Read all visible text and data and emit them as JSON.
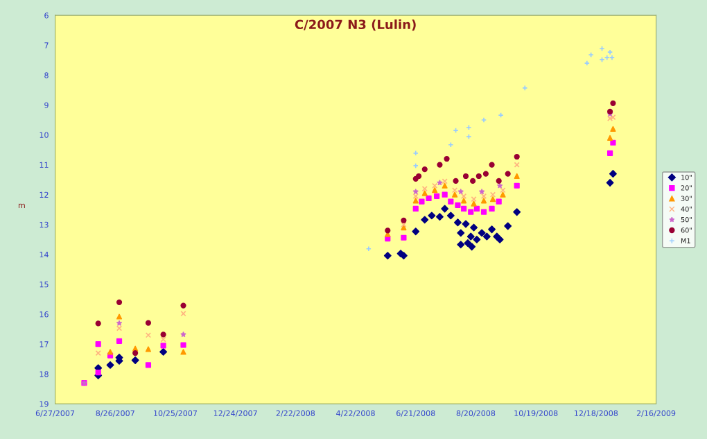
{
  "chart_data": {
    "type": "scatter",
    "title": "C/2007 N3 (Lulin)",
    "ylabel": "m",
    "xlim": [
      "2007-06-27",
      "2009-02-16"
    ],
    "xticks": [
      {
        "value": "2007-06-27",
        "label": "6/27/2007"
      },
      {
        "value": "2007-08-26",
        "label": "8/26/2007"
      },
      {
        "value": "2007-10-25",
        "label": "10/25/2007"
      },
      {
        "value": "2007-12-24",
        "label": "12/24/2007"
      },
      {
        "value": "2008-02-22",
        "label": "2/22/2008"
      },
      {
        "value": "2008-04-22",
        "label": "4/22/2008"
      },
      {
        "value": "2008-06-21",
        "label": "6/21/2008"
      },
      {
        "value": "2008-08-20",
        "label": "8/20/2008"
      },
      {
        "value": "2008-10-19",
        "label": "10/19/2008"
      },
      {
        "value": "2008-12-18",
        "label": "12/18/2008"
      },
      {
        "value": "2009-02-16",
        "label": "2/16/2009"
      }
    ],
    "ylim": [
      19,
      6
    ],
    "yticks": [
      6,
      7,
      8,
      9,
      10,
      11,
      12,
      13,
      14,
      15,
      16,
      17,
      18,
      19
    ],
    "grid": false,
    "legend": "right",
    "series": [
      {
        "name": "10\"",
        "color": "#000080",
        "marker": "diamond",
        "x": [
          "2007-08-09",
          "2007-08-09",
          "2007-08-21",
          "2007-08-30",
          "2007-08-30",
          "2007-09-15",
          "2007-10-13",
          "2008-05-24",
          "2008-06-06",
          "2008-06-09",
          "2008-06-21",
          "2008-06-30",
          "2008-07-07",
          "2008-07-15",
          "2008-07-20",
          "2008-07-26",
          "2008-08-02",
          "2008-08-05",
          "2008-08-10",
          "2008-08-15",
          "2008-08-18",
          "2008-08-21",
          "2008-08-26",
          "2008-08-31",
          "2008-09-05",
          "2008-09-10",
          "2008-09-13",
          "2008-09-21",
          "2008-09-30",
          "2008-08-05",
          "2008-08-16",
          "2008-08-12",
          "2009-01-01",
          "2009-01-04"
        ],
        "values": [
          17.8,
          18.05,
          17.7,
          17.45,
          17.56,
          17.54,
          17.26,
          14.04,
          13.97,
          14.04,
          13.23,
          12.84,
          12.7,
          12.74,
          12.47,
          12.7,
          12.93,
          13.28,
          12.98,
          13.4,
          13.1,
          13.5,
          13.28,
          13.4,
          13.16,
          13.4,
          13.5,
          13.05,
          12.58,
          13.67,
          13.74,
          13.62,
          11.6,
          11.3
        ]
      },
      {
        "name": "20\"",
        "color": "#ff00ff",
        "marker": "square",
        "x": [
          "2007-07-26",
          "2007-08-09",
          "2007-08-09",
          "2007-08-21",
          "2007-08-30",
          "2007-09-28",
          "2007-10-13",
          "2007-11-02",
          "2008-05-24",
          "2008-06-09",
          "2008-06-21",
          "2008-06-27",
          "2008-07-04",
          "2008-07-12",
          "2008-07-20",
          "2008-07-26",
          "2008-08-02",
          "2008-08-08",
          "2008-08-15",
          "2008-08-21",
          "2008-08-28",
          "2008-09-05",
          "2008-09-12",
          "2008-09-30",
          "2009-01-01",
          "2009-01-04"
        ],
        "values": [
          18.3,
          17.0,
          17.95,
          17.38,
          16.9,
          17.7,
          17.05,
          17.03,
          13.47,
          13.44,
          12.47,
          12.23,
          12.12,
          12.05,
          12.0,
          12.23,
          12.35,
          12.47,
          12.58,
          12.47,
          12.58,
          12.47,
          12.23,
          11.7,
          10.61,
          10.26
        ]
      },
      {
        "name": "30\"",
        "color": "#ff9900",
        "marker": "triangle",
        "x": [
          "2007-08-21",
          "2007-08-30",
          "2007-09-15",
          "2007-09-28",
          "2007-11-02",
          "2008-05-24",
          "2008-06-09",
          "2008-06-21",
          "2008-06-30",
          "2008-07-10",
          "2008-07-20",
          "2008-07-30",
          "2008-08-08",
          "2008-08-18",
          "2008-08-28",
          "2008-09-06",
          "2008-09-16",
          "2008-09-30",
          "2009-01-01",
          "2009-01-04"
        ],
        "values": [
          17.26,
          16.08,
          17.15,
          17.17,
          17.26,
          13.32,
          13.1,
          12.2,
          11.95,
          11.85,
          11.7,
          12.0,
          12.2,
          12.3,
          12.2,
          12.15,
          12.0,
          11.38,
          10.1,
          9.8
        ]
      },
      {
        "name": "40\"",
        "color": "#ffb380",
        "marker": "cross",
        "x": [
          "2007-08-09",
          "2007-08-30",
          "2007-09-28",
          "2007-10-13",
          "2007-11-02",
          "2008-05-24",
          "2008-06-09",
          "2008-06-21",
          "2008-06-30",
          "2008-07-10",
          "2008-07-20",
          "2008-07-30",
          "2008-08-08",
          "2008-08-18",
          "2008-08-28",
          "2008-09-06",
          "2008-09-16",
          "2008-09-30",
          "2009-01-01",
          "2009-01-04"
        ],
        "values": [
          17.3,
          16.47,
          16.7,
          16.84,
          15.98,
          null,
          13.0,
          12.05,
          11.8,
          11.7,
          11.55,
          11.85,
          12.05,
          12.15,
          12.05,
          12.0,
          11.85,
          11.0,
          9.45,
          9.41
        ]
      },
      {
        "name": "50\"",
        "color": "#cc66cc",
        "marker": "star",
        "x": [
          "2007-07-26",
          "2007-08-30",
          "2007-11-02",
          "2008-06-21",
          "2008-07-15",
          "2008-08-05",
          "2008-08-26",
          "2008-09-13",
          "2009-01-01"
        ],
        "values": [
          18.3,
          16.3,
          16.68,
          11.9,
          11.6,
          11.9,
          11.9,
          11.7,
          9.3
        ]
      },
      {
        "name": "60\"",
        "color": "#990033",
        "marker": "circle",
        "x": [
          "2007-08-09",
          "2007-08-30",
          "2007-09-15",
          "2007-09-28",
          "2007-10-13",
          "2007-11-02",
          "2008-05-24",
          "2008-06-09",
          "2008-06-21",
          "2008-06-24",
          "2008-06-30",
          "2008-07-15",
          "2008-07-22",
          "2008-07-31",
          "2008-08-10",
          "2008-08-17",
          "2008-08-23",
          "2008-08-30",
          "2008-09-05",
          "2008-09-12",
          "2008-09-21",
          "2008-09-30",
          "2009-01-01",
          "2009-01-04"
        ],
        "values": [
          16.31,
          15.6,
          17.3,
          16.29,
          16.68,
          15.71,
          13.2,
          12.86,
          11.47,
          11.38,
          11.15,
          11.0,
          10.8,
          11.54,
          11.38,
          11.54,
          11.38,
          11.3,
          11.0,
          11.54,
          11.3,
          10.73,
          9.22,
          8.94
        ]
      },
      {
        "name": "M1",
        "color": "#99ccff",
        "marker": "plus",
        "x": [
          "2008-05-05",
          "2008-06-21",
          "2008-06-21",
          "2008-07-26",
          "2008-07-31",
          "2008-08-13",
          "2008-08-13",
          "2008-08-28",
          "2008-09-14",
          "2008-10-08",
          "2008-12-09",
          "2008-12-13",
          "2008-12-24",
          "2008-12-24",
          "2008-12-29",
          "2009-01-01",
          "2009-01-03"
        ],
        "values": [
          13.81,
          10.61,
          11.03,
          10.33,
          9.85,
          9.75,
          10.06,
          9.5,
          9.34,
          8.43,
          7.6,
          7.32,
          7.11,
          7.48,
          7.41,
          7.23,
          7.41
        ]
      }
    ]
  }
}
